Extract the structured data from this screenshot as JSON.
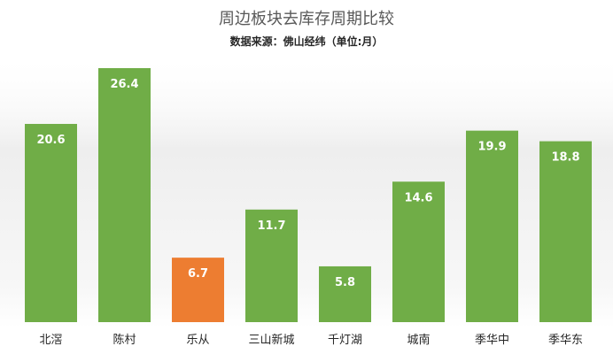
{
  "chart_data": {
    "type": "bar",
    "title": "周边板块去库存周期比较",
    "subtitle": "数据来源：佛山经纬（单位:月）",
    "categories": [
      "北滘",
      "陈村",
      "乐从",
      "三山新城",
      "千灯湖",
      "城南",
      "季华中",
      "季华东"
    ],
    "values": [
      20.6,
      26.4,
      6.7,
      11.7,
      5.8,
      14.6,
      19.9,
      18.8
    ],
    "data_labels": [
      "20.6",
      "26.4",
      "6.7",
      "11.7",
      "5.8",
      "14.6",
      "19.9",
      "18.8"
    ],
    "highlight_index": 2,
    "xlabel": "",
    "ylabel": "",
    "ylim": [
      0,
      27.5
    ],
    "grid": false,
    "legend": "none",
    "colors": {
      "bar": "#70ad47",
      "highlight": "#ed7d31",
      "label": "#ffffff",
      "axis_text": "#262626",
      "title": "#595959",
      "background_top": "#d9d9d9",
      "background_bottom": "#ffffff"
    }
  }
}
